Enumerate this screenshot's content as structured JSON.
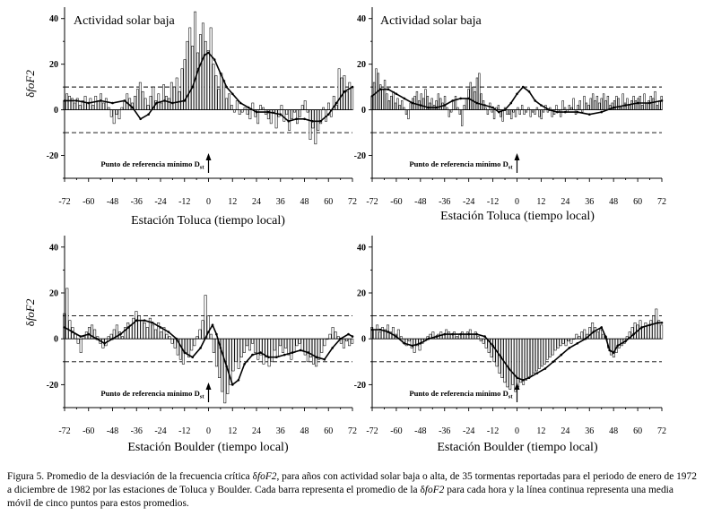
{
  "caption": {
    "prefix": "Figura 5. Promedio de la desviación de la frecuencia crítica ",
    "symbol1": "δ",
    "var1": "foF2",
    "mid1": ", para años con actividad solar baja o alta, de 35 tormentas reportadas para el periodo de enero de 1972 a diciembre de 1982 por las estaciones de Toluca y Boulder. Cada barra representa el promedio de la ",
    "symbol2": "δ",
    "var2": "foF2",
    "suffix": " para cada hora y la línea continua representa una media móvil de cinco puntos para estos promedios."
  },
  "chart_data": [
    {
      "type": "bar",
      "panel": "top-left",
      "title": "Actividad solar baja",
      "xlabel": "Estación Toluca (tiempo local)",
      "ylabel": "δfoF2",
      "annotation": "Punto de referencia mínimo D",
      "annotation_sub": "st",
      "xlim": [
        -72,
        72
      ],
      "ylim": [
        -30,
        45
      ],
      "xticks": [
        -72,
        -60,
        -48,
        -36,
        -24,
        -12,
        0,
        12,
        24,
        36,
        48,
        60,
        72
      ],
      "yticks": [
        -20,
        0,
        20,
        40
      ],
      "reference_lines": [
        10,
        -10
      ],
      "bars": [
        4,
        7,
        6,
        5,
        3,
        5,
        2,
        4,
        6,
        3,
        5,
        2,
        6,
        4,
        7,
        3,
        5,
        1,
        -3,
        -6,
        -2,
        -4,
        1,
        4,
        7,
        5,
        3,
        6,
        9,
        12,
        8,
        5,
        2,
        6,
        10,
        4,
        7,
        3,
        11,
        6,
        5,
        12,
        10,
        14,
        8,
        18,
        22,
        30,
        36,
        28,
        43,
        25,
        33,
        38,
        30,
        26,
        36,
        20,
        15,
        9,
        16,
        13,
        5,
        7,
        2,
        -1,
        4,
        -2,
        -1,
        1,
        -2,
        -4,
        3,
        -3,
        -6,
        2,
        1,
        -2,
        -4,
        -6,
        -1,
        -8,
        -3,
        2,
        -5,
        -2,
        -9,
        -4,
        -1,
        -6,
        -3,
        2,
        4,
        -1,
        -13,
        -8,
        -15,
        -9,
        -6,
        1,
        -5,
        3,
        -3,
        6,
        2,
        18,
        14,
        15,
        8,
        12,
        10
      ],
      "moving_average": [
        [
          -72,
          4
        ],
        [
          -66,
          4
        ],
        [
          -60,
          3
        ],
        [
          -54,
          4
        ],
        [
          -48,
          3
        ],
        [
          -42,
          4
        ],
        [
          -38,
          1
        ],
        [
          -34,
          -4
        ],
        [
          -30,
          -2
        ],
        [
          -26,
          3
        ],
        [
          -22,
          4
        ],
        [
          -18,
          3
        ],
        [
          -12,
          4
        ],
        [
          -8,
          10
        ],
        [
          -5,
          18
        ],
        [
          -2,
          24
        ],
        [
          0,
          25
        ],
        [
          3,
          22
        ],
        [
          6,
          16
        ],
        [
          9,
          10
        ],
        [
          12,
          7
        ],
        [
          16,
          3
        ],
        [
          20,
          1
        ],
        [
          24,
          -1
        ],
        [
          30,
          -1
        ],
        [
          36,
          -2
        ],
        [
          40,
          -5
        ],
        [
          44,
          -4
        ],
        [
          48,
          -4
        ],
        [
          52,
          -5
        ],
        [
          56,
          -5
        ],
        [
          60,
          -2
        ],
        [
          64,
          3
        ],
        [
          68,
          8
        ],
        [
          72,
          10
        ]
      ]
    },
    {
      "type": "bar",
      "panel": "top-right",
      "title": "Actividad solar baja",
      "xlabel": "Estación Toluca (tiempo local)",
      "ylabel": "",
      "annotation": "Punto de referencia mínimo D",
      "annotation_sub": "st",
      "xlim": [
        -72,
        72
      ],
      "ylim": [
        -30,
        45
      ],
      "xticks": [
        -72,
        -60,
        -48,
        -36,
        -24,
        -12,
        0,
        12,
        24,
        36,
        48,
        60,
        72
      ],
      "yticks": [
        -20,
        0,
        20,
        40
      ],
      "reference_lines": [
        10,
        -10
      ],
      "bars": [
        6,
        12,
        18,
        16,
        11,
        9,
        13,
        7,
        4,
        6,
        8,
        3,
        5,
        2,
        4,
        1,
        -2,
        -4,
        3,
        5,
        6,
        8,
        4,
        7,
        5,
        9,
        6,
        3,
        5,
        2,
        4,
        7,
        5,
        3,
        6,
        1,
        -3,
        -1,
        4,
        6,
        1,
        -2,
        -7,
        2,
        5,
        9,
        12,
        10,
        8,
        14,
        16,
        7,
        4,
        1,
        -2,
        3,
        -1,
        -4,
        1,
        2,
        -3,
        -5,
        1,
        -2,
        -2,
        -4,
        -1,
        -3,
        1,
        -2,
        2,
        -2,
        -1,
        1,
        -3,
        -1,
        -2,
        1,
        -3,
        -4,
        -1,
        2,
        -1,
        1,
        -3,
        -2,
        2,
        -1,
        -3,
        4,
        1,
        -1,
        2,
        1,
        5,
        -2,
        2,
        4,
        -1,
        6,
        3,
        2,
        5,
        7,
        4,
        6,
        3,
        5,
        7,
        4,
        6,
        2,
        3,
        4,
        6,
        5,
        1,
        7,
        3,
        5,
        2,
        4,
        6,
        4,
        5,
        6,
        2,
        7,
        3,
        4,
        6,
        5,
        8,
        2,
        4,
        6
      ],
      "moving_average": [
        [
          -72,
          6
        ],
        [
          -68,
          9
        ],
        [
          -64,
          9
        ],
        [
          -60,
          7
        ],
        [
          -56,
          5
        ],
        [
          -52,
          3
        ],
        [
          -48,
          2
        ],
        [
          -44,
          1
        ],
        [
          -40,
          1
        ],
        [
          -36,
          2
        ],
        [
          -32,
          4
        ],
        [
          -28,
          5
        ],
        [
          -24,
          5
        ],
        [
          -20,
          3
        ],
        [
          -16,
          2
        ],
        [
          -12,
          1
        ],
        [
          -9,
          -1
        ],
        [
          -6,
          0
        ],
        [
          -3,
          3
        ],
        [
          0,
          7
        ],
        [
          3,
          10
        ],
        [
          6,
          8
        ],
        [
          9,
          4
        ],
        [
          12,
          2
        ],
        [
          16,
          0
        ],
        [
          20,
          -1
        ],
        [
          24,
          -1
        ],
        [
          30,
          -1
        ],
        [
          36,
          -2
        ],
        [
          42,
          -1
        ],
        [
          48,
          1
        ],
        [
          54,
          2
        ],
        [
          60,
          3
        ],
        [
          66,
          3
        ],
        [
          72,
          4
        ]
      ]
    },
    {
      "type": "bar",
      "panel": "bottom-left",
      "title": "",
      "xlabel": "Estación Boulder (tiempo local)",
      "ylabel": "δfoF2",
      "annotation": "Punto de referencia mínimo D",
      "annotation_sub": "st",
      "xlim": [
        -72,
        72
      ],
      "ylim": [
        -30,
        45
      ],
      "xticks": [
        -72,
        -60,
        -48,
        -36,
        -24,
        -12,
        0,
        12,
        24,
        36,
        48,
        60,
        72
      ],
      "yticks": [
        -20,
        0,
        20,
        40
      ],
      "reference_lines": [
        10,
        -10
      ],
      "bars": [
        11,
        22,
        8,
        5,
        2,
        -2,
        -6,
        1,
        3,
        5,
        6,
        4,
        1,
        -2,
        -4,
        -3,
        1,
        2,
        4,
        6,
        3,
        1,
        5,
        7,
        6,
        9,
        12,
        10,
        8,
        7,
        5,
        9,
        6,
        4,
        7,
        3,
        5,
        2,
        1,
        -2,
        -4,
        -7,
        -9,
        -11,
        -6,
        -8,
        -5,
        -3,
        1,
        4,
        8,
        19,
        10,
        2,
        -6,
        -12,
        -17,
        -23,
        -28,
        -24,
        -20,
        -14,
        -10,
        -13,
        -8,
        -6,
        -3,
        -5,
        -2,
        -6,
        -9,
        -7,
        -11,
        -8,
        -12,
        -10,
        -5,
        -8,
        -3,
        -6,
        -4,
        -7,
        -9,
        -6,
        -3,
        -2,
        -5,
        -7,
        -10,
        -8,
        -11,
        -12,
        -9,
        -6,
        -3,
        0,
        2,
        5,
        3,
        1,
        -2,
        -4,
        -1,
        -3,
        -2
      ],
      "moving_average": [
        [
          -72,
          5
        ],
        [
          -68,
          3
        ],
        [
          -64,
          1
        ],
        [
          -60,
          2
        ],
        [
          -56,
          0
        ],
        [
          -52,
          -2
        ],
        [
          -48,
          0
        ],
        [
          -44,
          2
        ],
        [
          -40,
          5
        ],
        [
          -36,
          8
        ],
        [
          -32,
          8
        ],
        [
          -28,
          7
        ],
        [
          -24,
          5
        ],
        [
          -20,
          3
        ],
        [
          -16,
          0
        ],
        [
          -12,
          -6
        ],
        [
          -8,
          -8
        ],
        [
          -4,
          -4
        ],
        [
          0,
          3
        ],
        [
          2,
          6
        ],
        [
          4,
          2
        ],
        [
          6,
          -4
        ],
        [
          9,
          -12
        ],
        [
          12,
          -20
        ],
        [
          15,
          -18
        ],
        [
          18,
          -11
        ],
        [
          22,
          -7
        ],
        [
          26,
          -6
        ],
        [
          30,
          -8
        ],
        [
          34,
          -8
        ],
        [
          38,
          -7
        ],
        [
          42,
          -6
        ],
        [
          46,
          -5
        ],
        [
          50,
          -6
        ],
        [
          54,
          -8
        ],
        [
          58,
          -9
        ],
        [
          62,
          -4
        ],
        [
          66,
          0
        ],
        [
          70,
          2
        ],
        [
          72,
          1
        ]
      ]
    },
    {
      "type": "bar",
      "panel": "bottom-right",
      "title": "",
      "xlabel": "Estación Boulder (tiempo local)",
      "ylabel": "",
      "annotation": "Punto de referencia mínimo D",
      "annotation_sub": "st",
      "xlim": [
        -72,
        72
      ],
      "ylim": [
        -30,
        45
      ],
      "xticks": [
        -72,
        -60,
        -48,
        -36,
        -24,
        -12,
        0,
        12,
        24,
        36,
        48,
        60,
        72
      ],
      "yticks": [
        -20,
        0,
        20,
        40
      ],
      "reference_lines": [
        10,
        -10
      ],
      "bars": [
        5,
        4,
        6,
        3,
        5,
        4,
        6,
        3,
        5,
        2,
        4,
        1,
        -2,
        -3,
        -1,
        -4,
        -6,
        -3,
        -5,
        -2,
        -1,
        1,
        2,
        3,
        1,
        2,
        3,
        2,
        4,
        3,
        2,
        3,
        1,
        2,
        3,
        2,
        3,
        4,
        2,
        3,
        1,
        -1,
        -2,
        -4,
        -6,
        -8,
        -10,
        -12,
        -15,
        -17,
        -19,
        -21,
        -22,
        -20,
        -23,
        -21,
        -19,
        -20,
        -18,
        -17,
        -16,
        -15,
        -14,
        -13,
        -12,
        -11,
        -9,
        -8,
        -7,
        -5,
        -4,
        -3,
        -2,
        -3,
        -1,
        -2,
        0,
        2,
        1,
        3,
        4,
        2,
        5,
        7,
        5,
        3,
        4,
        2,
        1,
        -4,
        -7,
        -8,
        -6,
        -4,
        -3,
        -2,
        1,
        3,
        5,
        7,
        6,
        8,
        5,
        7,
        6,
        8,
        10,
        13,
        8,
        6
      ],
      "moving_average": [
        [
          -72,
          4
        ],
        [
          -68,
          4
        ],
        [
          -64,
          3
        ],
        [
          -60,
          1
        ],
        [
          -56,
          -2
        ],
        [
          -52,
          -3
        ],
        [
          -48,
          -2
        ],
        [
          -44,
          0
        ],
        [
          -40,
          1
        ],
        [
          -36,
          2
        ],
        [
          -32,
          2
        ],
        [
          -28,
          2
        ],
        [
          -24,
          2
        ],
        [
          -20,
          2
        ],
        [
          -16,
          1
        ],
        [
          -12,
          -3
        ],
        [
          -8,
          -8
        ],
        [
          -4,
          -13
        ],
        [
          0,
          -17
        ],
        [
          3,
          -18
        ],
        [
          6,
          -17
        ],
        [
          10,
          -15
        ],
        [
          14,
          -13
        ],
        [
          18,
          -10
        ],
        [
          22,
          -7
        ],
        [
          26,
          -4
        ],
        [
          30,
          -2
        ],
        [
          34,
          0
        ],
        [
          38,
          3
        ],
        [
          42,
          5
        ],
        [
          44,
          1
        ],
        [
          46,
          -5
        ],
        [
          48,
          -6
        ],
        [
          50,
          -3
        ],
        [
          54,
          -1
        ],
        [
          58,
          2
        ],
        [
          62,
          5
        ],
        [
          66,
          6
        ],
        [
          70,
          7
        ],
        [
          72,
          7
        ]
      ]
    }
  ]
}
